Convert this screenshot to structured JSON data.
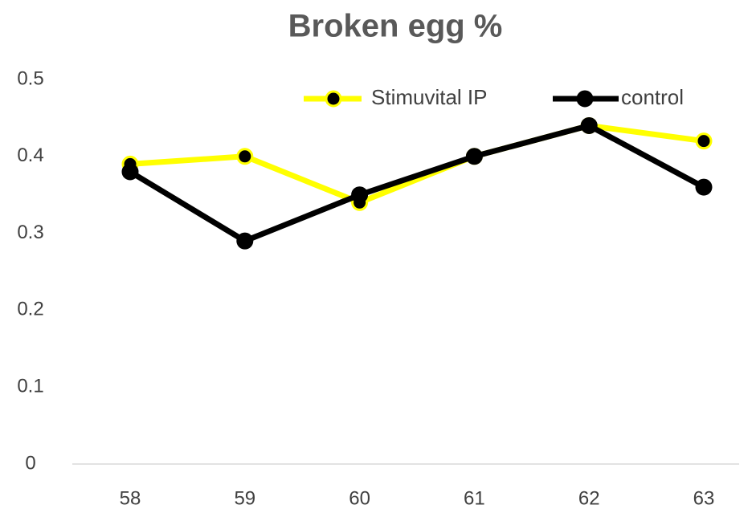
{
  "chart_data": {
    "type": "line",
    "title": "Broken egg %",
    "categories": [
      "58",
      "59",
      "60",
      "61",
      "62",
      "63"
    ],
    "series": [
      {
        "name": "Stimuvital IP",
        "color": "#ffff00",
        "values": [
          0.39,
          0.4,
          0.34,
          0.4,
          0.44,
          0.42
        ]
      },
      {
        "name": "control",
        "color": "#000000",
        "values": [
          0.38,
          0.29,
          0.35,
          0.4,
          0.44,
          0.36
        ]
      }
    ],
    "ylim": [
      0,
      0.5
    ],
    "yticks": [
      0,
      0.1,
      0.2,
      0.3,
      0.4,
      0.5
    ],
    "grid": false,
    "legend": "top-right"
  }
}
